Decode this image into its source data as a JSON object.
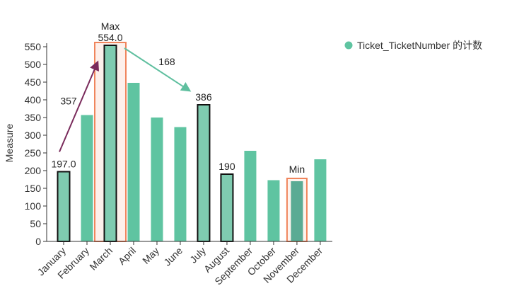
{
  "chart_data": {
    "type": "bar",
    "categories": [
      "January",
      "February",
      "March",
      "April",
      "May",
      "June",
      "July",
      "August",
      "September",
      "October",
      "November",
      "December"
    ],
    "values": [
      197,
      357,
      554,
      448,
      350,
      323,
      386,
      190,
      256,
      173,
      170,
      232
    ],
    "ylabel": "Measure",
    "xlabel": "",
    "ylim": [
      0,
      560
    ],
    "yticks": [
      0,
      50,
      100,
      150,
      200,
      250,
      300,
      350,
      400,
      450,
      500,
      550
    ],
    "legend": {
      "label": "Ticket_TicketNumber 的计数",
      "placement": "top-right"
    },
    "colors": {
      "bar": "#5fc4a1",
      "highlight_fill": "#7fcbb0",
      "min_bar": "#5aab94",
      "highlight_stroke": "#111111",
      "box_stroke": "#f0855c",
      "up_arrow": "#7a2b5c",
      "down_arrow": "#5fbf9f"
    },
    "labeled_bars": [
      {
        "category": "January",
        "label": "197.0"
      },
      {
        "category": "March",
        "label": "554.0"
      },
      {
        "category": "July",
        "label": "386"
      },
      {
        "category": "August",
        "label": "190"
      }
    ],
    "highlighted_bars": [
      "January",
      "March",
      "July",
      "August"
    ],
    "annotations": {
      "max": {
        "category": "March",
        "label": "Max"
      },
      "min": {
        "category": "November",
        "label": "Min"
      },
      "diff_up": {
        "from": "January",
        "to": "March",
        "label": "357"
      },
      "diff_down": {
        "from": "March",
        "to": "July",
        "label": "168"
      }
    }
  }
}
